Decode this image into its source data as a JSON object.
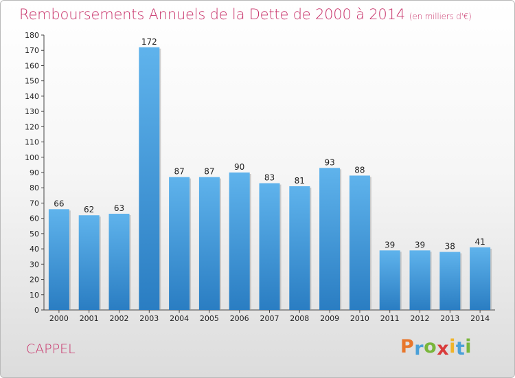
{
  "header": {
    "title": "Remboursements Annuels de la Dette de 2000 à 2014",
    "unit": "(en milliers d'€)"
  },
  "commune": "CAPPEL",
  "logo": {
    "letters": [
      "P",
      "r",
      "o",
      "x",
      "i",
      "t",
      "i"
    ],
    "colors": [
      "#e8762b",
      "#4aa0d8",
      "#79b63b",
      "#d93b3b",
      "#f0b429",
      "#4aa0d8",
      "#79b63b"
    ]
  },
  "chart_data": {
    "type": "bar",
    "title": "Remboursements Annuels de la Dette de 2000 à 2014",
    "categories": [
      "2000",
      "2001",
      "2002",
      "2003",
      "2004",
      "2005",
      "2006",
      "2007",
      "2008",
      "2009",
      "2010",
      "2011",
      "2012",
      "2013",
      "2014"
    ],
    "values": [
      66,
      62,
      63,
      172,
      87,
      87,
      90,
      83,
      81,
      93,
      88,
      39,
      39,
      38,
      41
    ],
    "ylim": [
      0,
      180
    ],
    "ytick_step": 10,
    "grid": false,
    "bar_color": "#3f97d9"
  }
}
